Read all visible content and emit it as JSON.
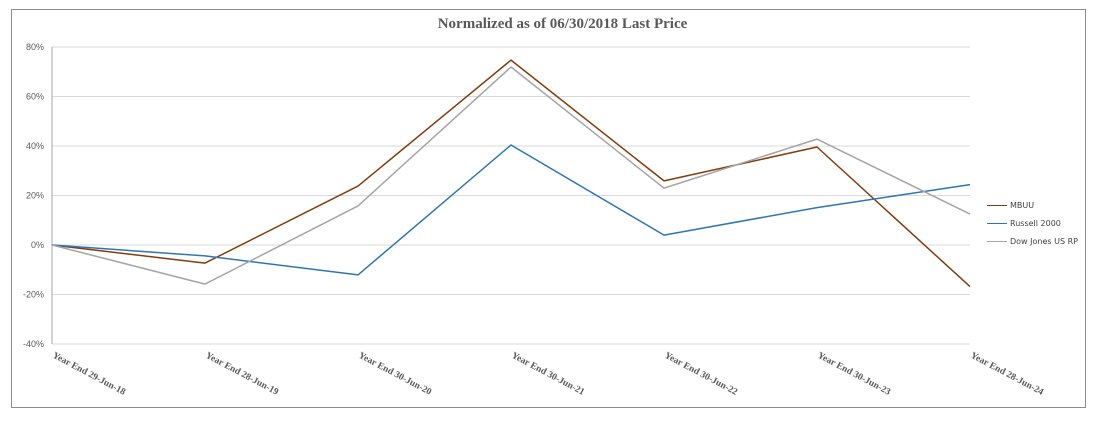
{
  "chart_data": {
    "type": "line",
    "title": "Normalized as of 06/30/2018 Last Price",
    "xlabel": "",
    "ylabel": "",
    "categories": [
      "Year End 29-Jun-18",
      "Year End 28-Jun-19",
      "Year End 30-Jun-20",
      "Year End 30-Jun-21",
      "Year End 30-Jun-22",
      "Year End 30-Jun-23",
      "Year End 28-Jun-24"
    ],
    "series": [
      {
        "name": "MBUU",
        "color": "#843C0C",
        "values": [
          0.0,
          -7.3,
          23.8,
          74.7,
          25.9,
          39.6,
          -16.8
        ]
      },
      {
        "name": "Russell 2000",
        "color": "#2E75B6",
        "values": [
          0.0,
          -4.4,
          -12.1,
          40.4,
          4.0,
          15.1,
          24.4
        ]
      },
      {
        "name": "Dow Jones US RP",
        "color": "#A5A5A5",
        "values": [
          0.0,
          -15.8,
          15.8,
          71.9,
          23.0,
          42.8,
          12.5
        ]
      }
    ],
    "ylim": [
      -40,
      80
    ],
    "yticks": [
      80,
      60,
      40,
      20,
      0,
      -20,
      -40
    ],
    "ytick_labels": [
      "80%",
      "60%",
      "40%",
      "20%",
      "0%",
      "-20%",
      "-40%"
    ],
    "grid": true,
    "legend_position": "right"
  },
  "legend": {
    "items": [
      {
        "label": "MBUU",
        "color": "#843C0C"
      },
      {
        "label": "Russell 2000",
        "color": "#2E75B6"
      },
      {
        "label": "Dow Jones US RP",
        "color": "#A5A5A5"
      }
    ]
  }
}
